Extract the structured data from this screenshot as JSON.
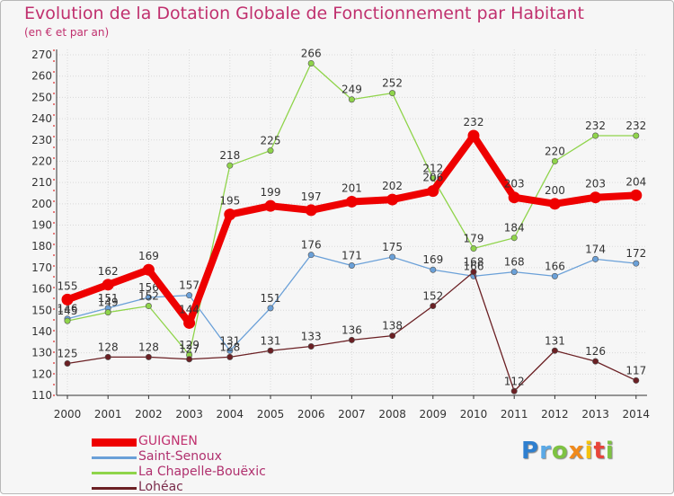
{
  "header": {
    "title": "Evolution de la Dotation Globale de Fonctionnement par Habitant",
    "subtitle": "(en € et par an)"
  },
  "brand": {
    "letters": [
      "P",
      "r",
      "o",
      "x",
      "i",
      "t",
      "i"
    ],
    "colors": [
      "#2e7fcf",
      "#5aa9e6",
      "#7ec242",
      "#f08a1c",
      "#f4c20d",
      "#e8443a",
      "#7ec242"
    ]
  },
  "chart_data": {
    "type": "line",
    "title": "Evolution de la Dotation Globale de Fonctionnement par Habitant",
    "subtitle": "(en € et par an)",
    "x": [
      "2000",
      "2001",
      "2002",
      "2003",
      "2004",
      "2005",
      "2006",
      "2007",
      "2008",
      "2009",
      "2010",
      "2011",
      "2012",
      "2013",
      "2014"
    ],
    "ylim": [
      110,
      270
    ],
    "yticks": [
      110,
      120,
      130,
      140,
      150,
      160,
      170,
      180,
      190,
      200,
      210,
      220,
      230,
      240,
      250,
      260,
      270
    ],
    "grid": true,
    "legend_position": "bottom-left",
    "series": [
      {
        "name": "GUIGNEN",
        "color": "#ee0000",
        "emphasis": true,
        "values": [
          155,
          162,
          169,
          144,
          195,
          199,
          197,
          201,
          202,
          206,
          232,
          203,
          200,
          203,
          204
        ],
        "labels": [
          "155",
          "162",
          "169",
          "144",
          "195",
          "199",
          "197",
          "201",
          "202",
          "206",
          "232",
          "203",
          "200",
          "203",
          "204"
        ]
      },
      {
        "name": "Saint-Senoux",
        "color": "#6aa0d8",
        "emphasis": false,
        "values": [
          146,
          151,
          156,
          157,
          131,
          151,
          176,
          171,
          175,
          169,
          166,
          168,
          166,
          174,
          172
        ],
        "labels": [
          "146",
          "151",
          "156",
          "157",
          "131",
          "151",
          "176",
          "171",
          "175",
          "169",
          "166",
          "168",
          "166",
          "174",
          "172"
        ]
      },
      {
        "name": "La Chapelle-Bouëxic",
        "color": "#8fd44a",
        "emphasis": false,
        "values": [
          145,
          149,
          152,
          129,
          218,
          225,
          266,
          249,
          252,
          212,
          179,
          184,
          220,
          232,
          232
        ],
        "labels": [
          "145",
          "149",
          "152",
          "129",
          "218",
          "225",
          "266",
          "249",
          "252",
          "212",
          "179",
          "184",
          "220",
          "232",
          "232"
        ]
      },
      {
        "name": "Lohéac",
        "color": "#6b2024",
        "emphasis": false,
        "values": [
          125,
          128,
          128,
          127,
          128,
          131,
          133,
          136,
          138,
          152,
          168,
          112,
          131,
          126,
          117
        ],
        "labels": [
          "125",
          "128",
          "128",
          "127",
          "128",
          "131",
          "133",
          "136",
          "138",
          "152",
          "168",
          "112",
          "131",
          "126",
          "117"
        ]
      }
    ]
  }
}
